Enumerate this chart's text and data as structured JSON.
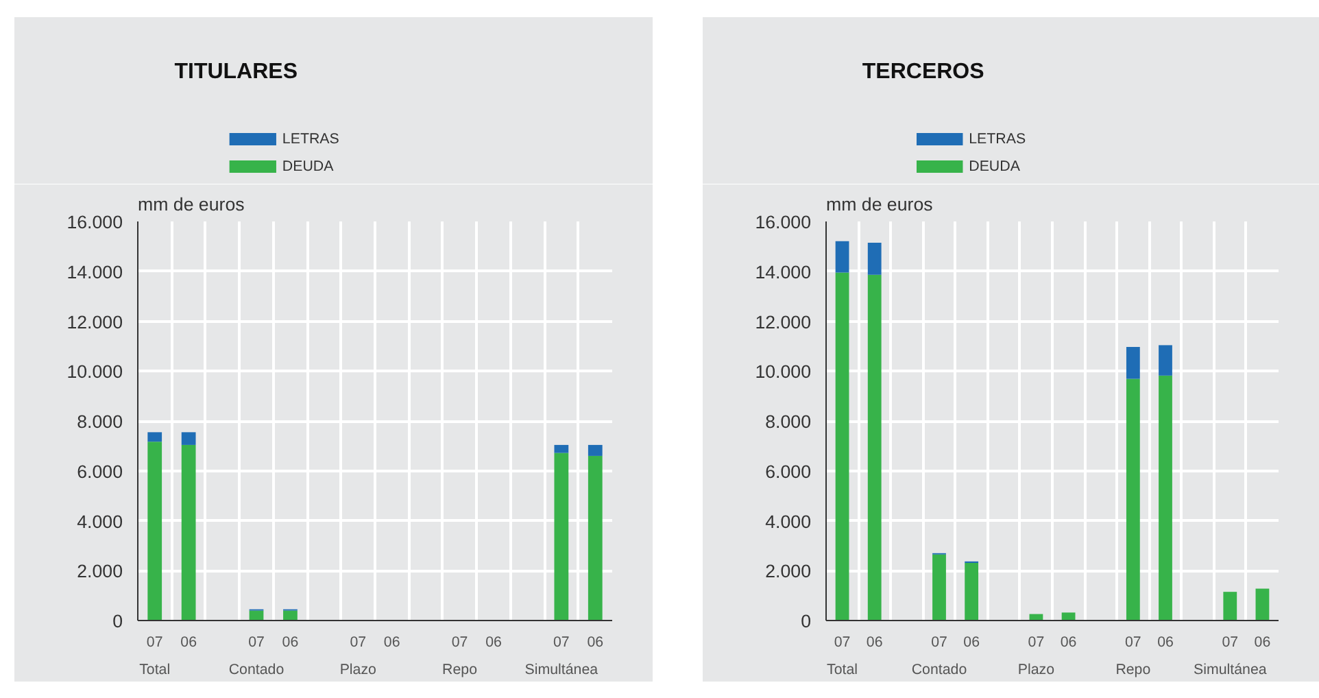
{
  "chart_data": [
    {
      "type": "bar",
      "title": "TITULARES",
      "ylabel": "mm de euros",
      "stacked": true,
      "grid": true,
      "legend": "top left",
      "categories": [
        "07",
        "06",
        null,
        "07",
        "06",
        null,
        "07",
        "06",
        null,
        "07",
        "06",
        null,
        "07",
        "06"
      ],
      "annotations": [
        "Total",
        "Contado",
        "Plazo",
        "Repo",
        "Simultánea"
      ],
      "series": [
        {
          "name": "DEUDA",
          "color": "#37b34a",
          "values": [
            7170,
            7040,
            null,
            400,
            400,
            null,
            0,
            0,
            null,
            0,
            0,
            null,
            6720,
            6600
          ]
        },
        {
          "name": "LETRAS",
          "color": "#1f6db5",
          "values": [
            380,
            510,
            null,
            50,
            50,
            null,
            0,
            0,
            null,
            0,
            0,
            null,
            320,
            440
          ]
        }
      ],
      "ylim": [
        0,
        16000
      ],
      "yticks": [
        0,
        {
          "value": 2000,
          "label": "2.000"
        },
        {
          "value": 4000,
          "label": "4.000"
        },
        {
          "value": 6000,
          "label": "6.000"
        },
        {
          "value": 8000,
          "label": "8.000"
        },
        {
          "value": 10000,
          "label": "10.000"
        },
        {
          "value": 12000,
          "label": "12.000"
        },
        {
          "value": 14000,
          "label": "14.000"
        },
        {
          "value": 16000,
          "label": "16.000"
        }
      ]
    },
    {
      "type": "bar",
      "title": "TERCEROS",
      "ylabel": "mm de euros",
      "stacked": true,
      "grid": true,
      "legend": "top left",
      "categories": [
        "07",
        "06",
        null,
        "07",
        "06",
        null,
        "07",
        "06",
        null,
        "07",
        "06",
        null,
        "07",
        "06"
      ],
      "annotations": [
        "Total",
        "Contado",
        "Plazo",
        "Repo",
        "Simultánea"
      ],
      "series": [
        {
          "name": "DEUDA",
          "color": "#37b34a",
          "values": [
            13950,
            13860,
            null,
            2650,
            2310,
            null,
            260,
            320,
            null,
            9690,
            9820,
            null,
            1150,
            1280
          ]
        },
        {
          "name": "LETRAS",
          "color": "#1f6db5",
          "values": [
            1260,
            1290,
            null,
            50,
            60,
            null,
            0,
            0,
            null,
            1280,
            1220,
            null,
            0,
            0
          ]
        }
      ],
      "ylim": [
        0,
        16000
      ],
      "yticks": [
        0,
        {
          "value": 2000,
          "label": "2.000"
        },
        {
          "value": 4000,
          "label": "4.000"
        },
        {
          "value": 6000,
          "label": "6.000"
        },
        {
          "value": 8000,
          "label": "8.000"
        },
        {
          "value": 10000,
          "label": "10.000"
        },
        {
          "value": 12000,
          "label": "12.000"
        },
        {
          "value": 14000,
          "label": "14.000"
        },
        {
          "value": 16000,
          "label": "16.000"
        }
      ]
    }
  ]
}
